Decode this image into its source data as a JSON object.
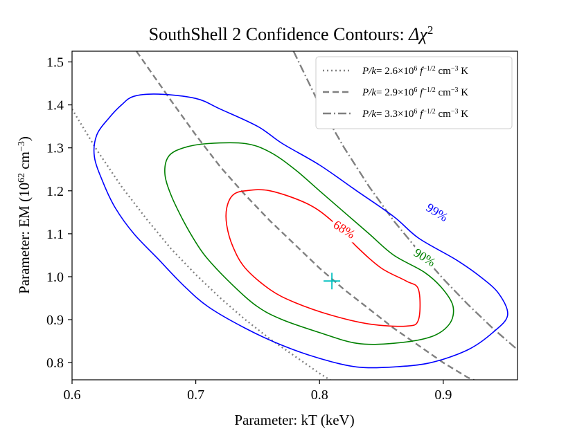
{
  "chart_data": {
    "type": "line",
    "title": "SouthShell 2  Confidence Contours: Δχ²",
    "xlabel": "Parameter: kT (keV)",
    "ylabel": "Parameter: EM (10⁶² cm⁻³)",
    "xlim": [
      0.6,
      0.96
    ],
    "ylim": [
      0.76,
      1.525
    ],
    "xticks": [
      0.6,
      0.7,
      0.8,
      0.9
    ],
    "xtick_labels": [
      "0.6",
      "0.7",
      "0.8",
      "0.9"
    ],
    "yticks": [
      0.8,
      0.9,
      1.0,
      1.1,
      1.2,
      1.3,
      1.4,
      1.5
    ],
    "ytick_labels": [
      "0.8",
      "0.9",
      "1.0",
      "1.1",
      "1.2",
      "1.3",
      "1.4",
      "1.5"
    ],
    "grid": false,
    "legend_position": "top-right",
    "best_fit": {
      "x": 0.81,
      "y": 0.99,
      "marker": "+",
      "color": "#00bfbf"
    },
    "contours": [
      {
        "label": "68%",
        "color": "#ff0000",
        "label_at": {
          "x": 0.82,
          "y": 1.11
        },
        "points": [
          [
            0.76,
            1.2
          ],
          [
            0.74,
            1.2
          ],
          [
            0.73,
            1.19
          ],
          [
            0.725,
            1.16
          ],
          [
            0.725,
            1.12
          ],
          [
            0.73,
            1.07
          ],
          [
            0.74,
            1.02
          ],
          [
            0.76,
            0.97
          ],
          [
            0.78,
            0.94
          ],
          [
            0.81,
            0.91
          ],
          [
            0.84,
            0.89
          ],
          [
            0.87,
            0.885
          ],
          [
            0.88,
            0.9
          ],
          [
            0.88,
            0.97
          ],
          [
            0.87,
            0.99
          ],
          [
            0.85,
            1.02
          ],
          [
            0.83,
            1.07
          ],
          [
            0.81,
            1.13
          ],
          [
            0.79,
            1.17
          ],
          [
            0.76,
            1.2
          ]
        ]
      },
      {
        "label": "90%",
        "color": "#008000",
        "label_at": {
          "x": 0.885,
          "y": 1.045
        },
        "points": [
          [
            0.71,
            1.31
          ],
          [
            0.69,
            1.3
          ],
          [
            0.678,
            1.28
          ],
          [
            0.675,
            1.24
          ],
          [
            0.68,
            1.19
          ],
          [
            0.69,
            1.13
          ],
          [
            0.7,
            1.08
          ],
          [
            0.71,
            1.04
          ],
          [
            0.73,
            0.98
          ],
          [
            0.75,
            0.93
          ],
          [
            0.77,
            0.9
          ],
          [
            0.8,
            0.87
          ],
          [
            0.83,
            0.845
          ],
          [
            0.86,
            0.845
          ],
          [
            0.89,
            0.86
          ],
          [
            0.905,
            0.89
          ],
          [
            0.908,
            0.93
          ],
          [
            0.9,
            0.97
          ],
          [
            0.885,
            1.01
          ],
          [
            0.86,
            1.05
          ],
          [
            0.84,
            1.1
          ],
          [
            0.82,
            1.15
          ],
          [
            0.8,
            1.2
          ],
          [
            0.78,
            1.25
          ],
          [
            0.76,
            1.29
          ],
          [
            0.74,
            1.31
          ],
          [
            0.71,
            1.31
          ]
        ]
      },
      {
        "label": "99%",
        "color": "#0000ff",
        "label_at": {
          "x": 0.895,
          "y": 1.15
        },
        "points": [
          [
            0.67,
            1.425
          ],
          [
            0.65,
            1.42
          ],
          [
            0.64,
            1.4
          ],
          [
            0.63,
            1.37
          ],
          [
            0.62,
            1.33
          ],
          [
            0.618,
            1.28
          ],
          [
            0.625,
            1.22
          ],
          [
            0.635,
            1.16
          ],
          [
            0.65,
            1.1
          ],
          [
            0.67,
            1.04
          ],
          [
            0.69,
            0.98
          ],
          [
            0.71,
            0.93
          ],
          [
            0.74,
            0.88
          ],
          [
            0.77,
            0.84
          ],
          [
            0.8,
            0.81
          ],
          [
            0.83,
            0.79
          ],
          [
            0.86,
            0.79
          ],
          [
            0.89,
            0.8
          ],
          [
            0.92,
            0.83
          ],
          [
            0.94,
            0.87
          ],
          [
            0.952,
            0.91
          ],
          [
            0.945,
            0.96
          ],
          [
            0.93,
            1.0
          ],
          [
            0.91,
            1.04
          ],
          [
            0.88,
            1.09
          ],
          [
            0.86,
            1.14
          ],
          [
            0.83,
            1.2
          ],
          [
            0.8,
            1.26
          ],
          [
            0.77,
            1.31
          ],
          [
            0.75,
            1.35
          ],
          [
            0.72,
            1.39
          ],
          [
            0.7,
            1.415
          ],
          [
            0.67,
            1.425
          ]
        ]
      }
    ],
    "series": [
      {
        "name": "P/k= 2.6×10⁶ f⁻¹ᐟ² cm⁻³ K",
        "style": "dotted",
        "color": "#808080",
        "x": [
          0.6,
          0.62,
          0.64,
          0.66,
          0.68,
          0.7,
          0.72,
          0.74,
          0.76,
          0.78,
          0.8,
          0.81
        ],
        "y": [
          1.39,
          1.295,
          1.21,
          1.135,
          1.065,
          1.005,
          0.95,
          0.9,
          0.855,
          0.815,
          0.775,
          0.757
        ]
      },
      {
        "name": "P/k= 2.9×10⁶ f⁻¹ᐟ² cm⁻³ K",
        "style": "dashed",
        "color": "#808080",
        "x": [
          0.652,
          0.68,
          0.7,
          0.72,
          0.74,
          0.76,
          0.78,
          0.8,
          0.82,
          0.84,
          0.86,
          0.88,
          0.9,
          0.92,
          0.927
        ],
        "y": [
          1.525,
          1.41,
          1.33,
          1.255,
          1.19,
          1.13,
          1.075,
          1.02,
          0.97,
          0.925,
          0.88,
          0.84,
          0.8,
          0.765,
          0.757
        ]
      },
      {
        "name": "P/k= 3.3×10⁶ f⁻¹ᐟ² cm⁻³ K",
        "style": "dashdot",
        "color": "#808080",
        "x": [
          0.779,
          0.8,
          0.82,
          0.84,
          0.86,
          0.88,
          0.9,
          0.92,
          0.94,
          0.96
        ],
        "y": [
          1.525,
          1.4,
          1.3,
          1.21,
          1.13,
          1.06,
          0.995,
          0.935,
          0.88,
          0.83
        ]
      }
    ]
  },
  "legend": {
    "entries": [
      {
        "prefix": "P/k",
        "text": "= 2.6×10",
        "sup": "6",
        "text2": " f",
        "sup2": "−1/2",
        "text3": " cm",
        "sup3": "−3",
        "text4": " K"
      },
      {
        "prefix": "P/k",
        "text": "= 2.9×10",
        "sup": "6",
        "text2": " f",
        "sup2": "−1/2",
        "text3": " cm",
        "sup3": "−3",
        "text4": " K"
      },
      {
        "prefix": "P/k",
        "text": "= 3.3×10",
        "sup": "6",
        "text2": " f",
        "sup2": "−1/2",
        "text3": " cm",
        "sup3": "−3",
        "text4": " K"
      }
    ]
  },
  "title_parts": {
    "main": "SouthShell 2  Confidence Contours: ",
    "delta": "Δχ",
    "sup": "2"
  },
  "ylabel_parts": {
    "main": "Parameter: EM (10",
    "sup": "62",
    "rest": " cm",
    "sup2": "−3",
    "end": ")"
  }
}
